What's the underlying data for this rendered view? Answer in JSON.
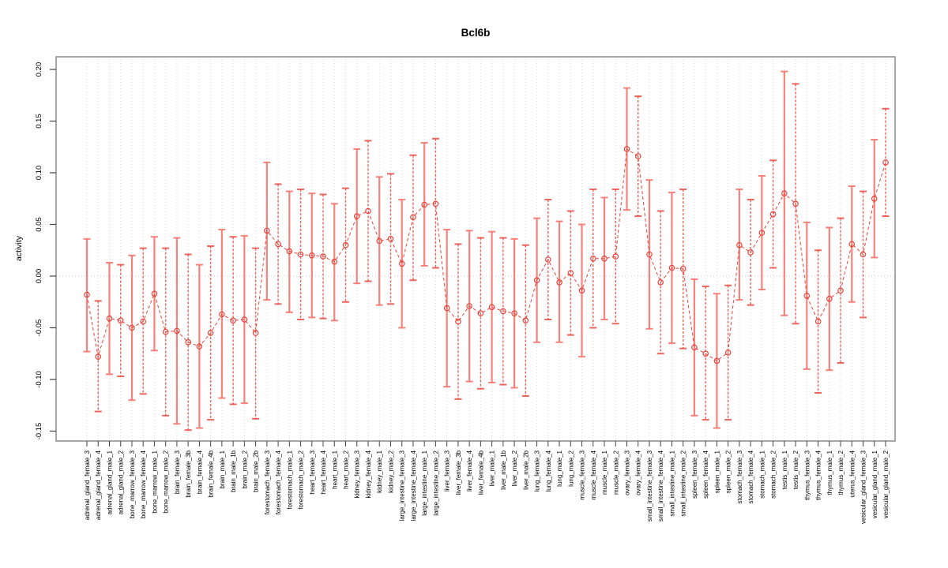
{
  "title": "Bcl6b",
  "colors": {
    "bar_solid": "rgba(246,114,106,0.88)",
    "bar_dashed": "rgba(233,64,54,0.80)",
    "point": "#e8443c",
    "series_line": "#e8443c",
    "grid": "#d9d9d9",
    "zero_line": "#cccccc",
    "axis_box": "#8a8a8a",
    "tick": "#444444",
    "text": "#000000"
  },
  "chart_data": {
    "type": "scatter",
    "subtype": "errorbar",
    "title": "Bcl6b",
    "xlabel": "",
    "ylabel": "activity",
    "ylim": [
      -0.16,
      0.212
    ],
    "grid": "vertical dotted line per category; dotted horizontal line at 0",
    "legend_position": "none",
    "ytick_values": [
      0.2,
      0.15,
      0.1,
      0.05,
      0.0,
      -0.05,
      -0.1,
      -0.15
    ],
    "ytick_labels": [
      "0.20",
      "0.15",
      "0.10",
      "0.05",
      "0.00",
      "-0.05",
      "-0.10",
      "-0.15"
    ],
    "categories": [
      "adrenal_gland_female_3",
      "adrenal_gland_female_4",
      "adrenal_gland_male_1",
      "adrenal_gland_male_2",
      "bone_marrow_female_3",
      "bone_marrow_female_4",
      "bone_marrow_male_1",
      "bone_marrow_male_2",
      "brain_female_3",
      "brain_female_3b",
      "brain_female_4",
      "brain_female_4b",
      "brain_male_1",
      "brain_male_1b",
      "brain_male_2",
      "brain_male_2b",
      "forestomach_female_3",
      "forestomach_female_4",
      "forestomach_male_1",
      "forestomach_male_2",
      "heart_female_3",
      "heart_female_4",
      "heart_male_1",
      "heart_male_2",
      "kidney_female_3",
      "kidney_female_4",
      "kidney_male_1",
      "kidney_male_2",
      "large_intestine_female_3",
      "large_intestine_female_4",
      "large_intestine_male_1",
      "large_intestine_male_2",
      "liver_female_3",
      "liver_female_3b",
      "liver_female_4",
      "liver_female_4b",
      "liver_male_1",
      "liver_male_1b",
      "liver_male_2",
      "liver_male_2b",
      "lung_female_3",
      "lung_female_4",
      "lung_male_1",
      "lung_male_2",
      "muscle_female_3",
      "muscle_female_4",
      "muscle_male_1",
      "muscle_male_2",
      "ovary_female_3",
      "ovary_female_4",
      "small_intestine_female_3",
      "small_intestine_female_4",
      "small_intestine_male_1",
      "small_intestine_male_2",
      "spleen_female_3",
      "spleen_female_4",
      "spleen_male_1",
      "spleen_male_2",
      "stomach_female_3",
      "stomach_female_4",
      "stomach_male_1",
      "stomach_male_2",
      "testis_male_1",
      "testis_male_2",
      "thymus_female_3",
      "thymus_female_4",
      "thymus_male_1",
      "thymus_male_2",
      "uterus_female_4",
      "vesicular_gland_female_3",
      "vesicular_gland_male_1",
      "vesicular_gland_male_2"
    ],
    "series": [
      {
        "name": "activity",
        "values": [
          -0.018,
          -0.078,
          -0.041,
          -0.043,
          -0.05,
          -0.044,
          -0.017,
          -0.054,
          -0.053,
          -0.064,
          -0.068,
          -0.055,
          -0.037,
          -0.043,
          -0.042,
          -0.055,
          0.044,
          0.031,
          0.024,
          0.021,
          0.02,
          0.019,
          0.014,
          0.03,
          0.058,
          0.063,
          0.034,
          0.036,
          0.012,
          0.057,
          0.069,
          0.07,
          -0.031,
          -0.044,
          -0.029,
          -0.036,
          -0.03,
          -0.034,
          -0.036,
          -0.043,
          -0.004,
          0.016,
          -0.006,
          0.003,
          -0.014,
          0.017,
          0.017,
          0.019,
          0.123,
          0.116,
          0.021,
          -0.006,
          0.008,
          0.007,
          -0.069,
          -0.075,
          -0.082,
          -0.074,
          0.03,
          0.023,
          0.042,
          0.06,
          0.08,
          0.07,
          -0.019,
          -0.044,
          -0.022,
          -0.014,
          0.031,
          0.021,
          0.075,
          0.11
        ],
        "ci_lower": [
          -0.073,
          -0.131,
          -0.095,
          -0.097,
          -0.12,
          -0.114,
          -0.072,
          -0.135,
          -0.143,
          -0.149,
          -0.147,
          -0.139,
          -0.118,
          -0.124,
          -0.123,
          -0.138,
          -0.023,
          -0.027,
          -0.035,
          -0.042,
          -0.04,
          -0.041,
          -0.043,
          -0.025,
          -0.007,
          -0.005,
          -0.028,
          -0.027,
          -0.05,
          -0.004,
          0.01,
          0.008,
          -0.107,
          -0.119,
          -0.102,
          -0.109,
          -0.103,
          -0.105,
          -0.108,
          -0.116,
          -0.064,
          -0.042,
          -0.064,
          -0.057,
          -0.078,
          -0.05,
          -0.042,
          -0.046,
          0.064,
          0.058,
          -0.051,
          -0.075,
          -0.065,
          -0.07,
          -0.135,
          -0.139,
          -0.147,
          -0.139,
          -0.023,
          -0.028,
          -0.013,
          0.008,
          -0.038,
          -0.046,
          -0.09,
          -0.113,
          -0.091,
          -0.084,
          -0.025,
          -0.04,
          0.018,
          0.058
        ],
        "ci_upper": [
          0.036,
          -0.024,
          0.013,
          0.011,
          0.02,
          0.027,
          0.038,
          0.027,
          0.037,
          0.021,
          0.011,
          0.029,
          0.045,
          0.038,
          0.039,
          0.027,
          0.11,
          0.089,
          0.082,
          0.084,
          0.08,
          0.079,
          0.07,
          0.085,
          0.123,
          0.131,
          0.096,
          0.099,
          0.074,
          0.117,
          0.129,
          0.133,
          0.045,
          0.031,
          0.044,
          0.037,
          0.043,
          0.037,
          0.036,
          0.03,
          0.056,
          0.074,
          0.053,
          0.063,
          0.05,
          0.084,
          0.076,
          0.084,
          0.182,
          0.174,
          0.093,
          0.063,
          0.081,
          0.084,
          -0.003,
          -0.01,
          -0.017,
          -0.009,
          0.084,
          0.074,
          0.097,
          0.112,
          0.198,
          0.186,
          0.052,
          0.025,
          0.047,
          0.056,
          0.087,
          0.082,
          0.132,
          0.162
        ]
      }
    ]
  }
}
